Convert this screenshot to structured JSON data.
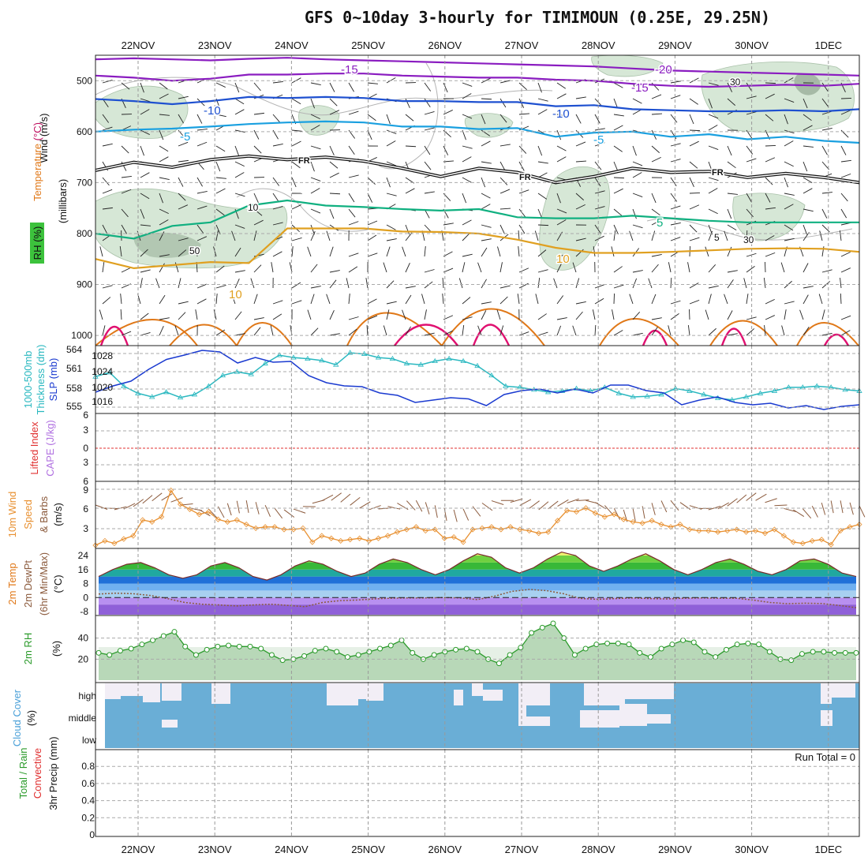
{
  "title": "GFS 0~10day 3-hourly for TIMIMOUN (0.25E, 29.25N)",
  "colors": {
    "temp_m20": "#8a1cc0",
    "temp_m15": "#8a1cc0",
    "temp_m10": "#1e50d0",
    "temp_m5": "#1aa0e0",
    "temp_fr": "#111111",
    "temp_5": "#10b080",
    "temp_10": "#e0a020",
    "temp_15": "#e07818",
    "temp_20": "#e01070",
    "rh_fill": "#cfe3cf",
    "thickness": "#2ab8c0",
    "slp": "#1a3ad0",
    "lifted": "#e03030",
    "wind_speed": "#e89030",
    "barb": "#8b5a3c",
    "dewpt": "#8b5a3c",
    "rh2m": "#2a9a2a",
    "cloud": "#6aaed6",
    "cloud_clear": "#f2eef6"
  },
  "chart_data": [
    {
      "type": "line",
      "panel": "upper-air",
      "title": "",
      "ylabel_parts": [
        "RH (%)",
        "Temperature",
        "(°C)",
        "Wind",
        "(m/s)"
      ],
      "ylabel2": "(millibars)",
      "yticks": [
        "500",
        "600",
        "700",
        "800",
        "900",
        "1000"
      ],
      "ylim": [
        450,
        1020
      ],
      "x_dates": [
        "22NOV",
        "23NOV",
        "24NOV",
        "25NOV",
        "26NOV",
        "27NOV",
        "28NOV",
        "29NOV",
        "30NOV",
        "1DEC"
      ],
      "x": [
        0,
        0.5,
        1,
        1.5,
        2,
        2.5,
        3,
        3.5,
        4,
        4.5,
        5,
        5.5,
        6,
        6.5,
        7,
        7.5,
        8,
        8.5,
        9,
        9.5,
        9.87
      ],
      "series": [
        {
          "name": "-20",
          "values": [
            458,
            456,
            458,
            460,
            457,
            455,
            458,
            460,
            462,
            464,
            466,
            468,
            470,
            472,
            476,
            480,
            482,
            484,
            486,
            488,
            490
          ]
        },
        {
          "name": "-15",
          "values": [
            490,
            494,
            500,
            496,
            488,
            488,
            486,
            486,
            490,
            492,
            494,
            494,
            498,
            500,
            506,
            510,
            512,
            510,
            508,
            510,
            506
          ]
        },
        {
          "name": "-10",
          "values": [
            536,
            540,
            546,
            540,
            532,
            534,
            532,
            534,
            540,
            540,
            542,
            542,
            550,
            548,
            556,
            558,
            560,
            560,
            558,
            560,
            556
          ]
        },
        {
          "name": "-5",
          "values": [
            600,
            596,
            594,
            590,
            585,
            582,
            580,
            582,
            590,
            590,
            595,
            593,
            610,
            602,
            600,
            610,
            605,
            615,
            610,
            618,
            622
          ]
        },
        {
          "name": "FR",
          "values": [
            676,
            660,
            670,
            655,
            648,
            655,
            650,
            658,
            672,
            688,
            672,
            680,
            700,
            688,
            672,
            680,
            678,
            690,
            682,
            690,
            700
          ]
        },
        {
          "name": "5",
          "values": [
            800,
            810,
            785,
            778,
            745,
            735,
            745,
            748,
            752,
            755,
            752,
            768,
            770,
            770,
            765,
            770,
            775,
            778,
            778,
            778,
            778
          ]
        },
        {
          "name": "10",
          "values": [
            850,
            868,
            862,
            856,
            858,
            790,
            790,
            790,
            796,
            797,
            800,
            812,
            828,
            838,
            838,
            836,
            833,
            830,
            829,
            830,
            836
          ]
        }
      ],
      "annotations": [
        "-15",
        "-20",
        "-15",
        "-10",
        "-10",
        "-5",
        "-5",
        "FR",
        "FR",
        "FR",
        "10",
        "5",
        "10",
        "5",
        "10",
        "50",
        "30",
        "30",
        "10"
      ]
    },
    {
      "type": "line",
      "panel": "slp-thickness",
      "ylabel_parts": [
        "1000-500mb",
        "Thickness (dm)",
        "SLP (mb)"
      ],
      "yticks_left": [
        "564",
        "561",
        "558",
        "555"
      ],
      "yticks_right": [
        "1028",
        "1024",
        "1020",
        "1016"
      ],
      "series": [
        {
          "name": "Thickness",
          "values": [
            558.8,
            559.5,
            557.2,
            556.0,
            555.4,
            556.2,
            555.3,
            555.8,
            557.2,
            559.0,
            559.6,
            559.2,
            561.0,
            562.4,
            562.0,
            561.8,
            561.5,
            560.8,
            562.8,
            562.6,
            562.0,
            561.8,
            561.0,
            560.8,
            561.4,
            561.8,
            561.4,
            560.6,
            559.0,
            557.2,
            557.0,
            556.6,
            556.2,
            556.4,
            556.8,
            556.4,
            557.0,
            556.0,
            555.4,
            555.5,
            555.8,
            556.8,
            556.4,
            555.8,
            555.2,
            554.9,
            555.4,
            556.0,
            556.4,
            557.0,
            557.0,
            557.2,
            557.0,
            556.6,
            556.4
          ]
        },
        {
          "name": "SLP",
          "values": [
            1018.2,
            1019.8,
            1021.0,
            1024.0,
            1026.5,
            1027.6,
            1028.8,
            1028.4,
            1025.6,
            1027.0,
            1025.8,
            1026.0,
            1022.4,
            1020.6,
            1019.8,
            1019.6,
            1018.0,
            1017.4,
            1015.6,
            1016.2,
            1016.8,
            1016.5,
            1014.8,
            1017.6,
            1018.6,
            1019.0,
            1018.0,
            1019.0,
            1018.0,
            1020.0,
            1020.0,
            1018.6,
            1018.0,
            1015.0,
            1016.2,
            1017.0,
            1015.6,
            1015.0,
            1015.4,
            1014.2,
            1014.8,
            1013.8,
            1014.6,
            1015.0
          ]
        }
      ]
    },
    {
      "type": "line",
      "panel": "cape-li",
      "ylabel_parts": [
        "Lifted Index",
        "CAPE (J/kg)"
      ],
      "yticks": [
        "6",
        "3",
        "0",
        "3",
        "6"
      ],
      "series": [
        {
          "name": "Lifted Index",
          "values": [
            0
          ]
        }
      ]
    },
    {
      "type": "line",
      "panel": "wind10m",
      "ylabel_parts": [
        "10m Wind",
        "Speed",
        "& Barbs",
        "(m/s)"
      ],
      "yticks": [
        "9",
        "6",
        "3"
      ],
      "series": [
        {
          "name": "Speed",
          "values": [
            0.5,
            1.2,
            0.8,
            1.5,
            2.0,
            4.5,
            4.2,
            5.0,
            9.2,
            7.0,
            6.2,
            5.4,
            5.8,
            4.6,
            4.2,
            4.5,
            3.8,
            3.2,
            3.4,
            3.4,
            3.0,
            3.0,
            3.2,
            1.0,
            2.0,
            1.6,
            1.2,
            1.4,
            1.6,
            1.2,
            1.6,
            2.0,
            2.6,
            3.0,
            3.4,
            2.8,
            3.0,
            1.6,
            1.8,
            1.0,
            3.0,
            3.2,
            3.4,
            3.0,
            3.4,
            3.0,
            2.8,
            2.4,
            2.6,
            4.4,
            6.0,
            5.8,
            6.4,
            5.6,
            5.0,
            5.4,
            4.6,
            4.2,
            4.0,
            4.4,
            3.8,
            3.4,
            3.8,
            3.0,
            2.8,
            2.8,
            2.6,
            2.8,
            3.0,
            2.6,
            2.8,
            2.4,
            3.0,
            2.0,
            1.0,
            0.8,
            1.2,
            1.4,
            0.6,
            2.8,
            3.4,
            3.8
          ]
        }
      ]
    },
    {
      "type": "area",
      "panel": "temp2m",
      "ylabel_parts": [
        "2m Temp",
        "2m DewPt",
        "(6hr Min/Max)",
        "(°C)"
      ],
      "yticks": [
        "24",
        "16",
        "8",
        "0",
        "-8"
      ],
      "series": [
        {
          "name": "2m Temp",
          "values": [
            12,
            16,
            19,
            20,
            17,
            13,
            11,
            13,
            18,
            20,
            17,
            12,
            10,
            13,
            18,
            21,
            19,
            15,
            12,
            14,
            19,
            22,
            20,
            16,
            13,
            16,
            21,
            25,
            23,
            17,
            14,
            17,
            22,
            26,
            24,
            18,
            15,
            18,
            22,
            25,
            21,
            16,
            13,
            16,
            20,
            22,
            19,
            15,
            13,
            16,
            21,
            22,
            19,
            14,
            12
          ]
        },
        {
          "name": "2m DewPt",
          "values": [
            2,
            2.5,
            2.2,
            1.2,
            -0.6,
            -2.8,
            -3.8,
            -4.2,
            -4.8,
            -4.2,
            -3.8,
            -4.5,
            -5.2,
            -2.8,
            -1.8,
            -1.4,
            -0.8,
            -0.4,
            -0.2,
            -0.2,
            0.0,
            -0.2,
            -1.2,
            0.8,
            3.5,
            4.6,
            4.0,
            2.2,
            -0.5,
            -1.0,
            -0.6,
            -0.2,
            -0.6,
            -0.8,
            -0.4,
            -0.2,
            -0.4,
            -0.4,
            -1.4,
            -2.8,
            -3.5,
            -3.2,
            -3.4,
            -4.5,
            -5.8
          ]
        }
      ]
    },
    {
      "type": "area",
      "panel": "rh2m",
      "ylabel_parts": [
        "2m RH",
        "(%)"
      ],
      "yticks": [
        "40",
        "20"
      ],
      "series": [
        {
          "name": "2m RH",
          "values": [
            26,
            24,
            28,
            30,
            34,
            38,
            42,
            46,
            32,
            24,
            29,
            32,
            33,
            32,
            32,
            30,
            24,
            19,
            20,
            23,
            28,
            30,
            27,
            22,
            24,
            27,
            30,
            33,
            38,
            26,
            20,
            24,
            27,
            29,
            30,
            27,
            20,
            16,
            24,
            31,
            45,
            50,
            54,
            40,
            24,
            30,
            34,
            35,
            35,
            34,
            26,
            22,
            30,
            34,
            38,
            36,
            27,
            22,
            29,
            34,
            35,
            34,
            27,
            20,
            19,
            25,
            27,
            27,
            26,
            26,
            26
          ]
        }
      ]
    },
    {
      "type": "heatmap",
      "panel": "cloud",
      "ylabel_parts": [
        "Cloud Cover",
        "(%)"
      ],
      "yticks": [
        "high",
        "middle",
        "low"
      ]
    },
    {
      "type": "bar",
      "panel": "precip",
      "ylabel_parts": [
        "Total / Rain",
        "Convective",
        "3hr Precip (mm)"
      ],
      "yticks": [
        "0.8",
        "0.6",
        "0.4",
        "0.2",
        "0"
      ],
      "annotations": [
        "Run Total = 0"
      ],
      "values": [
        0
      ]
    }
  ]
}
